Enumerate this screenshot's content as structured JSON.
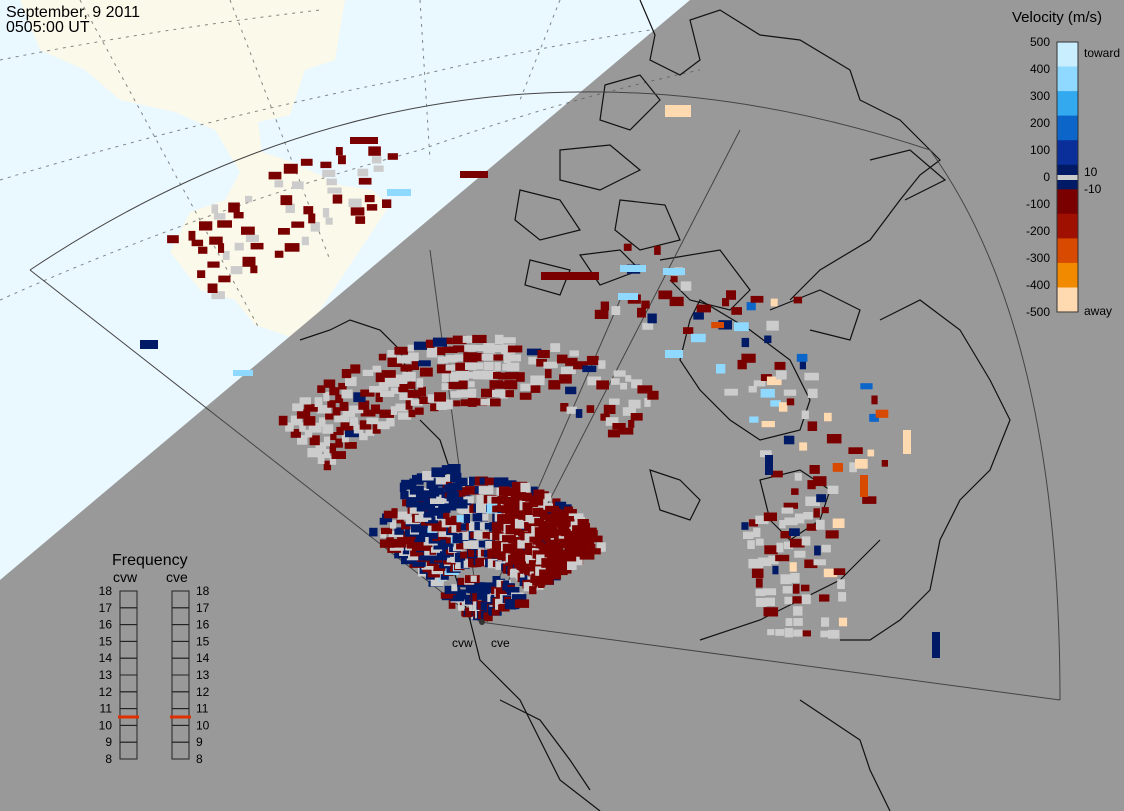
{
  "header": {
    "date": "September, 9 2011",
    "time": "0505:00 UT"
  },
  "velocity_scale": {
    "title": "Velocity (m/s)",
    "ticks": [
      "500",
      "400",
      "300",
      "200",
      "100",
      "0",
      "-100",
      "-200",
      "-300",
      "-400",
      "-500"
    ],
    "label_toward": "toward",
    "label_away": "away",
    "label_pos": "10",
    "label_neg": "-10",
    "colors": [
      "#c8eeff",
      "#8fd8ff",
      "#33a9f0",
      "#0c66c9",
      "#0a2f9a",
      "#001a66",
      "#7a0000",
      "#a01000",
      "#d84a00",
      "#f28a00",
      "#ffd9b0"
    ]
  },
  "frequency": {
    "title": "Frequency",
    "radars": [
      "cvw",
      "cve"
    ],
    "ticks": [
      "18",
      "17",
      "16",
      "15",
      "14",
      "13",
      "12",
      "11",
      "10",
      "9",
      "8"
    ],
    "cvw_mhz": 10.5,
    "cve_mhz": 10.5,
    "marker_color": "#e03000"
  },
  "radar_sites": {
    "west_label": "cvw",
    "east_label": "cve"
  },
  "colors": {
    "night": "#999999",
    "day_ocean": "#eaf8ff",
    "day_land": "#fbf9ea",
    "ground_scatter": "#cccccc"
  }
}
